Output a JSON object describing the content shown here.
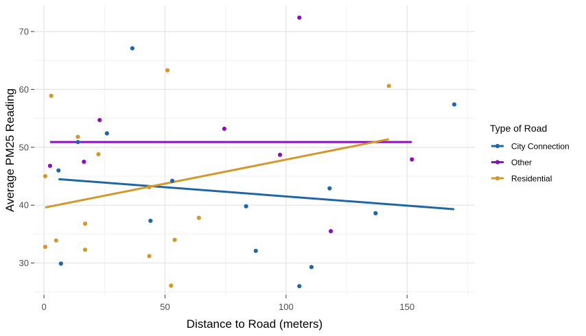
{
  "chart_data": {
    "type": "scatter",
    "xlabel": "Distance to Road (meters)",
    "ylabel": "Average PM25 Reading",
    "xlim": [
      -4,
      178
    ],
    "ylim": [
      24.5,
      74.5
    ],
    "x_ticks": [
      0,
      50,
      100,
      150
    ],
    "y_ticks": [
      30,
      40,
      50,
      60,
      70
    ],
    "grid": true,
    "legend": {
      "title": "Type of Road",
      "position": "right"
    },
    "series": [
      {
        "name": "City Connection",
        "color": "#2166a4",
        "points": [
          [
            6,
            46
          ],
          [
            7,
            29.9
          ],
          [
            14,
            50.9
          ],
          [
            26,
            52.4
          ],
          [
            36.5,
            67.1
          ],
          [
            44,
            37.3
          ],
          [
            53,
            44.2
          ],
          [
            83.5,
            39.8
          ],
          [
            87.5,
            32.1
          ],
          [
            105.5,
            26
          ],
          [
            110.5,
            29.3
          ],
          [
            118,
            42.9
          ],
          [
            137,
            38.6
          ],
          [
            169.5,
            57.4
          ]
        ],
        "trend": [
          [
            6,
            44.5
          ],
          [
            169.5,
            39.3
          ]
        ]
      },
      {
        "name": "Other",
        "color": "#8c0fbe",
        "points": [
          [
            2.5,
            46.8
          ],
          [
            16.5,
            47.5
          ],
          [
            23,
            54.7
          ],
          [
            74.5,
            53.2
          ],
          [
            97.5,
            48.7
          ],
          [
            105.5,
            72.4
          ],
          [
            118.5,
            35.5
          ],
          [
            152,
            47.9
          ]
        ],
        "trend": [
          [
            2.5,
            50.9
          ],
          [
            152,
            50.9
          ]
        ]
      },
      {
        "name": "Residential",
        "color": "#d1982b",
        "points": [
          [
            0.5,
            45
          ],
          [
            0.5,
            32.8
          ],
          [
            3,
            58.9
          ],
          [
            5,
            33.9
          ],
          [
            14,
            51.8
          ],
          [
            17,
            36.8
          ],
          [
            17,
            32.3
          ],
          [
            22.5,
            48.8
          ],
          [
            43.5,
            43.1
          ],
          [
            43.5,
            31.2
          ],
          [
            51,
            63.3
          ],
          [
            52.5,
            26.1
          ],
          [
            54,
            34
          ],
          [
            64,
            37.8
          ],
          [
            142.5,
            60.6
          ]
        ],
        "trend": [
          [
            0.5,
            39.6
          ],
          [
            142.5,
            51.4
          ]
        ]
      }
    ]
  }
}
